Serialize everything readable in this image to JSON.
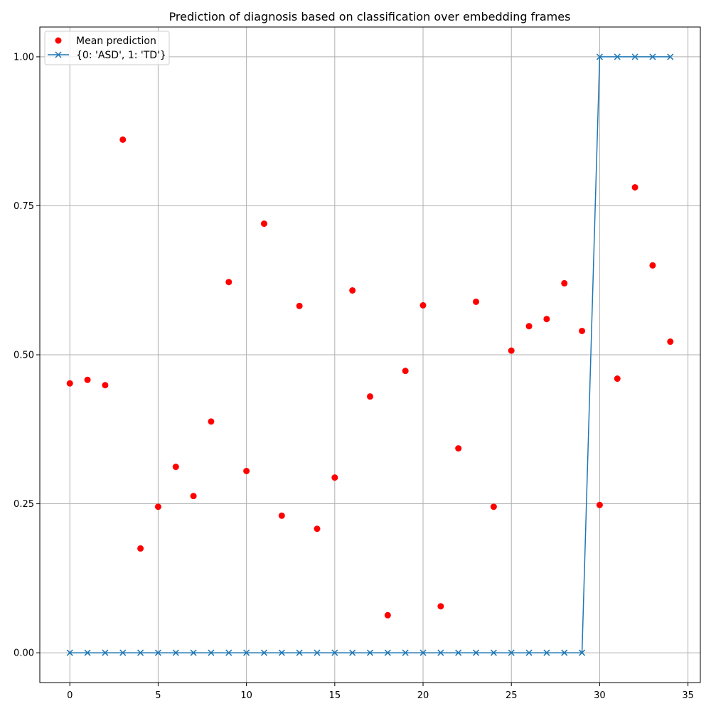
{
  "chart_data": {
    "type": "scatter",
    "title": "Prediction of diagnosis based on classification over embedding frames",
    "xlabel": "",
    "ylabel": "",
    "xlim": [
      -1.7,
      35.7
    ],
    "ylim": [
      -0.05,
      1.05
    ],
    "xticks": [
      0,
      5,
      10,
      15,
      20,
      25,
      30,
      35
    ],
    "yticks": [
      0.0,
      0.25,
      0.5,
      0.75,
      1.0
    ],
    "xtick_labels": [
      "0",
      "5",
      "10",
      "15",
      "20",
      "25",
      "30",
      "35"
    ],
    "ytick_labels": [
      "0.00",
      "0.25",
      "0.50",
      "0.75",
      "1.00"
    ],
    "grid": true,
    "legend_position": "upper-left",
    "series": [
      {
        "name": "Mean prediction",
        "kind": "scatter",
        "color": "#ff0000",
        "x": [
          0,
          1,
          2,
          3,
          4,
          5,
          6,
          7,
          8,
          9,
          10,
          11,
          12,
          13,
          14,
          15,
          16,
          17,
          18,
          19,
          20,
          21,
          22,
          23,
          24,
          25,
          26,
          27,
          28,
          29,
          30,
          31,
          32,
          33,
          34
        ],
        "y": [
          0.452,
          0.458,
          0.449,
          0.861,
          0.175,
          0.245,
          0.312,
          0.263,
          0.388,
          0.622,
          0.305,
          0.72,
          0.23,
          0.582,
          0.208,
          0.294,
          0.608,
          0.43,
          0.063,
          0.473,
          0.583,
          0.078,
          0.343,
          0.589,
          0.245,
          0.507,
          0.548,
          0.56,
          0.62,
          0.54,
          0.248,
          0.46,
          0.781,
          0.65,
          0.522
        ]
      },
      {
        "name": "{0: 'ASD', 1: 'TD'}",
        "kind": "line",
        "marker": "x",
        "color": "#1f77b4",
        "x": [
          0,
          1,
          2,
          3,
          4,
          5,
          6,
          7,
          8,
          9,
          10,
          11,
          12,
          13,
          14,
          15,
          16,
          17,
          18,
          19,
          20,
          21,
          22,
          23,
          24,
          25,
          26,
          27,
          28,
          29,
          30,
          31,
          32,
          33,
          34
        ],
        "y": [
          0,
          0,
          0,
          0,
          0,
          0,
          0,
          0,
          0,
          0,
          0,
          0,
          0,
          0,
          0,
          0,
          0,
          0,
          0,
          0,
          0,
          0,
          0,
          0,
          0,
          0,
          0,
          0,
          0,
          0,
          1,
          1,
          1,
          1,
          1
        ]
      }
    ]
  }
}
